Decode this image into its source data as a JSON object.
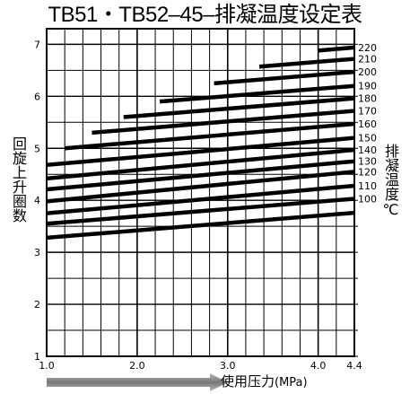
{
  "title": "TB51・TB52–45–排凝温度设定表",
  "ylabel_left": "回旋上升圈数",
  "ylabel_right": "排凝温度℃",
  "xlabel": "使用压力",
  "xlabel_unit": "(MPa)",
  "colors": {
    "lines": "#000000",
    "grid": "#000000",
    "arrow": "#888888"
  },
  "chart_data": {
    "type": "line",
    "title": "TB51・TB52–45–排凝温度设定表",
    "xlabel": "使用压力(MPa)",
    "ylabel": "回旋上升圈数",
    "xlim": [
      1.0,
      4.4
    ],
    "ylim": [
      1,
      7.3
    ],
    "x_ticks": [
      1.0,
      2.0,
      3.0,
      4.0,
      4.4
    ],
    "x_tick_labels": [
      "1.0",
      "2.0",
      "3.0",
      "4.0",
      "4.4"
    ],
    "y_ticks": [
      1,
      2,
      3,
      4,
      5,
      6,
      7
    ],
    "y_tick_labels": [
      "1",
      "2",
      "3",
      "4",
      "5",
      "6",
      "7"
    ],
    "grid": true,
    "series": [
      {
        "name": "220",
        "x": [
          4.0,
          4.4
        ],
        "y": [
          6.88,
          6.94
        ]
      },
      {
        "name": "210",
        "x": [
          3.35,
          4.4
        ],
        "y": [
          6.57,
          6.72
        ]
      },
      {
        "name": "200",
        "x": [
          2.85,
          4.4
        ],
        "y": [
          6.25,
          6.47
        ]
      },
      {
        "name": "190",
        "x": [
          2.25,
          4.4
        ],
        "y": [
          5.9,
          6.2
        ]
      },
      {
        "name": "180",
        "x": [
          1.85,
          4.4
        ],
        "y": [
          5.6,
          5.96
        ]
      },
      {
        "name": "170",
        "x": [
          1.5,
          4.4
        ],
        "y": [
          5.3,
          5.72
        ]
      },
      {
        "name": "160",
        "x": [
          1.2,
          4.4
        ],
        "y": [
          5.0,
          5.47
        ]
      },
      {
        "name": "150",
        "x": [
          1.0,
          4.4
        ],
        "y": [
          4.68,
          5.2
        ]
      },
      {
        "name": "140",
        "x": [
          1.0,
          4.4
        ],
        "y": [
          4.42,
          4.97
        ]
      },
      {
        "name": "130",
        "x": [
          1.0,
          4.4
        ],
        "y": [
          4.21,
          4.75
        ]
      },
      {
        "name": "120",
        "x": [
          1.0,
          4.4
        ],
        "y": [
          3.98,
          4.55
        ]
      },
      {
        "name": "110",
        "x": [
          1.0,
          4.4
        ],
        "y": [
          3.75,
          4.28
        ]
      },
      {
        "name": "100",
        "x": [
          1.0,
          4.4
        ],
        "y": [
          3.55,
          4.03
        ]
      },
      {
        "name": "",
        "x": [
          1.0,
          4.4
        ],
        "y": [
          3.28,
          3.76
        ]
      }
    ]
  }
}
